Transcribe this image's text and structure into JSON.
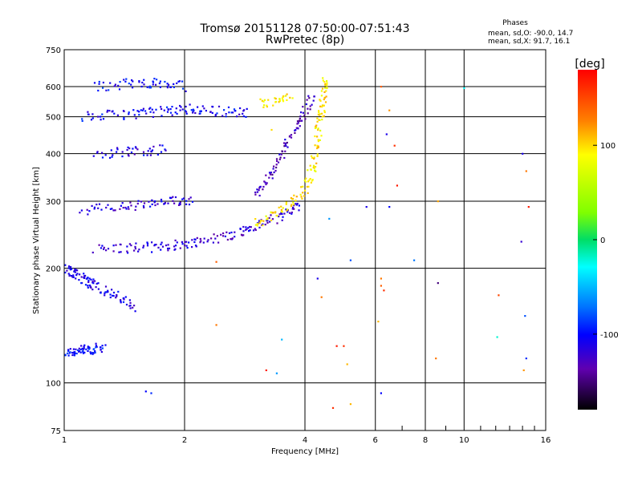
{
  "chart_data": {
    "type": "scatter",
    "title": "Tromsø 20151128 07:50:00-07:51:43",
    "subtitle": "RwPretec (8p)",
    "xlabel": "Frequency [MHz]",
    "ylabel": "Stationary phase Virtual Height [km]",
    "xscale": "log",
    "yscale": "log",
    "xlim": [
      1,
      16
    ],
    "ylim": [
      75,
      750
    ],
    "x_ticks": [
      1,
      2,
      4,
      6,
      8,
      10,
      16
    ],
    "y_ticks": [
      75,
      100,
      200,
      300,
      400,
      500,
      600,
      750
    ],
    "grid": true,
    "phase_legend": {
      "title": "Phases",
      "line_o": "mean, sd,O: -90.0, 14.7",
      "line_x": "mean, sd,X:  91.7, 16.1"
    },
    "colorbar": {
      "label": "[deg]",
      "range": [
        -180,
        180
      ],
      "ticks": [
        100,
        0,
        -100
      ]
    },
    "traces": [
      {
        "phase": -100,
        "points": [
          [
            1.0,
            120
          ],
          [
            1.05,
            121
          ],
          [
            1.1,
            122
          ],
          [
            1.15,
            122
          ],
          [
            1.2,
            123
          ],
          [
            1.25,
            125
          ]
        ]
      },
      {
        "phase": -110,
        "points": [
          [
            1.0,
            200
          ],
          [
            1.05,
            195
          ],
          [
            1.1,
            190
          ],
          [
            1.15,
            185
          ],
          [
            1.2,
            180
          ],
          [
            1.3,
            172
          ],
          [
            1.4,
            165
          ],
          [
            1.5,
            158
          ]
        ]
      },
      {
        "phase": -120,
        "points": [
          [
            1.2,
            225
          ],
          [
            1.4,
            226
          ],
          [
            1.6,
            227
          ],
          [
            1.8,
            229
          ],
          [
            2.0,
            232
          ],
          [
            2.2,
            236
          ],
          [
            2.5,
            242
          ],
          [
            2.8,
            250
          ],
          [
            3.0,
            258
          ],
          [
            3.3,
            268
          ],
          [
            3.6,
            280
          ],
          [
            3.9,
            295
          ]
        ]
      },
      {
        "phase": -115,
        "points": [
          [
            1.1,
            285
          ],
          [
            1.3,
            288
          ],
          [
            1.5,
            292
          ],
          [
            1.7,
            296
          ],
          [
            1.9,
            300
          ],
          [
            2.1,
            303
          ]
        ]
      },
      {
        "phase": -110,
        "points": [
          [
            1.2,
            400
          ],
          [
            1.4,
            405
          ],
          [
            1.6,
            408
          ],
          [
            1.8,
            410
          ]
        ]
      },
      {
        "phase": -105,
        "points": [
          [
            1.1,
            500
          ],
          [
            1.3,
            505
          ],
          [
            1.5,
            510
          ],
          [
            1.7,
            515
          ],
          [
            1.9,
            520
          ],
          [
            2.1,
            525
          ],
          [
            2.3,
            520
          ],
          [
            2.6,
            515
          ],
          [
            2.9,
            510
          ]
        ]
      },
      {
        "phase": -100,
        "points": [
          [
            1.2,
            600
          ],
          [
            1.4,
            610
          ],
          [
            1.6,
            615
          ],
          [
            1.8,
            610
          ],
          [
            2.0,
            600
          ]
        ]
      },
      {
        "phase": -130,
        "points": [
          [
            3.0,
            310
          ],
          [
            3.2,
            340
          ],
          [
            3.4,
            380
          ],
          [
            3.6,
            420
          ],
          [
            3.8,
            470
          ],
          [
            4.0,
            520
          ],
          [
            4.2,
            560
          ]
        ]
      },
      {
        "phase": 95,
        "points": [
          [
            3.0,
            262
          ],
          [
            3.3,
            275
          ],
          [
            3.6,
            290
          ],
          [
            3.9,
            310
          ],
          [
            4.1,
            340
          ],
          [
            4.2,
            380
          ],
          [
            4.3,
            430
          ],
          [
            4.35,
            480
          ],
          [
            4.4,
            530
          ],
          [
            4.45,
            580
          ],
          [
            4.5,
            620
          ]
        ]
      },
      {
        "phase": 95,
        "points": [
          [
            3.1,
            540
          ],
          [
            3.4,
            550
          ],
          [
            3.7,
            560
          ]
        ]
      }
    ],
    "scattered": [
      {
        "x": 6.2,
        "y": 600,
        "phase": 140
      },
      {
        "x": 6.5,
        "y": 520,
        "phase": 120
      },
      {
        "x": 6.4,
        "y": 450,
        "phase": -110
      },
      {
        "x": 6.7,
        "y": 420,
        "phase": 160
      },
      {
        "x": 6.8,
        "y": 330,
        "phase": 170
      },
      {
        "x": 6.5,
        "y": 290,
        "phase": -100
      },
      {
        "x": 14.0,
        "y": 400,
        "phase": -110
      },
      {
        "x": 14.3,
        "y": 360,
        "phase": 130
      },
      {
        "x": 14.5,
        "y": 290,
        "phase": 170
      },
      {
        "x": 13.9,
        "y": 235,
        "phase": -120
      },
      {
        "x": 8.6,
        "y": 300,
        "phase": 115
      },
      {
        "x": 8.6,
        "y": 183,
        "phase": -150
      },
      {
        "x": 12.2,
        "y": 170,
        "phase": 150
      },
      {
        "x": 14.2,
        "y": 150,
        "phase": -80
      },
      {
        "x": 12.1,
        "y": 132,
        "phase": -20
      },
      {
        "x": 14.3,
        "y": 116,
        "phase": -90
      },
      {
        "x": 14.1,
        "y": 108,
        "phase": 120
      },
      {
        "x": 8.5,
        "y": 116,
        "phase": 130
      },
      {
        "x": 6.2,
        "y": 188,
        "phase": 130
      },
      {
        "x": 6.2,
        "y": 180,
        "phase": 140
      },
      {
        "x": 6.3,
        "y": 175,
        "phase": 160
      },
      {
        "x": 6.1,
        "y": 145,
        "phase": 110
      },
      {
        "x": 6.2,
        "y": 94,
        "phase": -100
      },
      {
        "x": 5.2,
        "y": 88,
        "phase": 110
      },
      {
        "x": 4.7,
        "y": 86,
        "phase": 160
      },
      {
        "x": 3.2,
        "y": 108,
        "phase": 170
      },
      {
        "x": 3.4,
        "y": 106,
        "phase": -60
      },
      {
        "x": 2.4,
        "y": 142,
        "phase": 130
      },
      {
        "x": 2.4,
        "y": 208,
        "phase": 140
      },
      {
        "x": 1.6,
        "y": 95,
        "phase": -100
      },
      {
        "x": 1.65,
        "y": 94,
        "phase": -90
      },
      {
        "x": 4.3,
        "y": 188,
        "phase": -110
      },
      {
        "x": 4.4,
        "y": 168,
        "phase": 130
      },
      {
        "x": 4.8,
        "y": 125,
        "phase": 170
      },
      {
        "x": 5.0,
        "y": 125,
        "phase": 160
      },
      {
        "x": 5.1,
        "y": 112,
        "phase": 110
      },
      {
        "x": 5.2,
        "y": 210,
        "phase": -80
      },
      {
        "x": 7.5,
        "y": 210,
        "phase": -70
      },
      {
        "x": 10.0,
        "y": 595,
        "phase": -30
      },
      {
        "x": 5.7,
        "y": 290,
        "phase": -110
      },
      {
        "x": 4.6,
        "y": 270,
        "phase": -60
      },
      {
        "x": 3.3,
        "y": 462,
        "phase": 100
      },
      {
        "x": 3.5,
        "y": 130,
        "phase": -50
      }
    ]
  }
}
